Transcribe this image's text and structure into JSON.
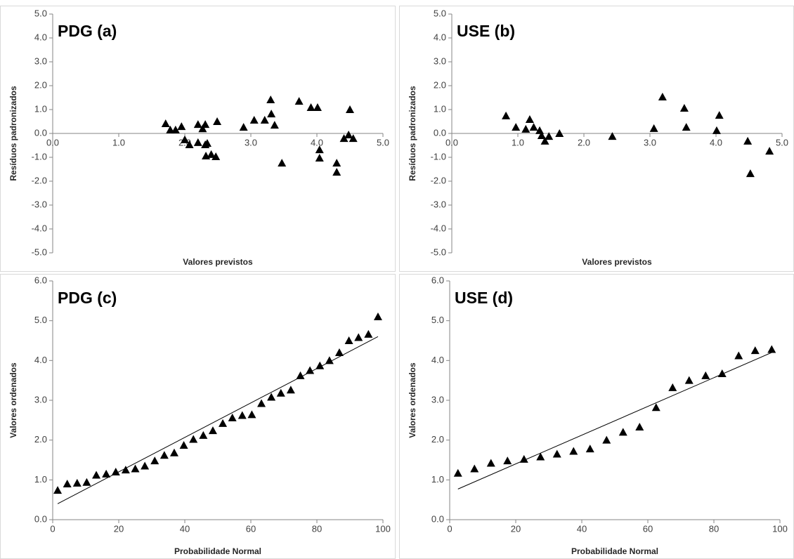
{
  "chart_data": [
    {
      "type": "scatter",
      "annotation": "PDG (a)",
      "xlabel": "Valores previstos",
      "ylabel": "Resíduos padronizados",
      "color": "#000000",
      "xaxis_position": "zero",
      "x": [
        1.71,
        1.78,
        1.86,
        1.95,
        2.0,
        2.07,
        2.2,
        2.2,
        2.27,
        2.31,
        2.31,
        2.34,
        2.32,
        2.4,
        2.47,
        2.49,
        2.89,
        3.05,
        3.21,
        3.3,
        3.31,
        3.36,
        3.47,
        3.73,
        3.91,
        4.01,
        4.04,
        4.04,
        4.3,
        4.3,
        4.41,
        4.48,
        4.5,
        4.55
      ],
      "values": [
        0.41,
        0.15,
        0.15,
        0.29,
        -0.26,
        -0.47,
        -0.38,
        0.38,
        0.2,
        0.38,
        -0.47,
        -0.41,
        -0.94,
        -0.88,
        -0.97,
        0.5,
        0.26,
        0.56,
        0.56,
        1.41,
        0.82,
        0.35,
        -1.24,
        1.35,
        1.09,
        1.09,
        -0.68,
        -1.03,
        -1.24,
        -1.62,
        -0.21,
        -0.06,
        1.0,
        -0.21
      ],
      "xlim": [
        0,
        5
      ],
      "ylim": [
        -5,
        5
      ],
      "xticks": [
        {
          "value": 0,
          "label": "0.0"
        },
        {
          "value": 1,
          "label": "1.0"
        },
        {
          "value": 2,
          "label": "2.0"
        },
        {
          "value": 3,
          "label": "3.0"
        },
        {
          "value": 4,
          "label": "4.0"
        },
        {
          "value": 5,
          "label": "5.0"
        }
      ],
      "yticks": [
        {
          "value": -5,
          "label": "-5.0"
        },
        {
          "value": -4,
          "label": "-4.0"
        },
        {
          "value": -3,
          "label": "-3.0"
        },
        {
          "value": -2,
          "label": "-2.0"
        },
        {
          "value": -1,
          "label": "-1.0"
        },
        {
          "value": 0,
          "label": "0.0"
        },
        {
          "value": 1,
          "label": "1.0"
        },
        {
          "value": 2,
          "label": "2.0"
        },
        {
          "value": 3,
          "label": "3.0"
        },
        {
          "value": 4,
          "label": "4.0"
        },
        {
          "value": 5,
          "label": "5.0"
        }
      ]
    },
    {
      "type": "scatter",
      "annotation": "USE (b)",
      "xlabel": "Valores previstos",
      "ylabel": "Resíduos padronizados",
      "color": "#000000",
      "xaxis_position": "zero",
      "x": [
        0.82,
        0.97,
        1.12,
        1.18,
        1.24,
        1.33,
        1.36,
        1.41,
        1.47,
        1.63,
        2.43,
        3.06,
        3.19,
        3.52,
        3.55,
        4.01,
        4.05,
        4.48,
        4.52,
        4.81
      ],
      "values": [
        0.74,
        0.26,
        0.18,
        0.59,
        0.26,
        0.12,
        -0.09,
        -0.32,
        -0.12,
        0.0,
        -0.12,
        0.21,
        1.53,
        1.06,
        0.26,
        0.12,
        0.76,
        -0.32,
        -1.68,
        -0.74
      ],
      "xlim": [
        0,
        5
      ],
      "ylim": [
        -5,
        5
      ],
      "xticks": [
        {
          "value": 0,
          "label": "0.0"
        },
        {
          "value": 1,
          "label": "1.0"
        },
        {
          "value": 2,
          "label": "2.0"
        },
        {
          "value": 3,
          "label": "3.0"
        },
        {
          "value": 4,
          "label": "4.0"
        },
        {
          "value": 5,
          "label": "5.0"
        }
      ],
      "yticks": [
        {
          "value": -5,
          "label": "-5.0"
        },
        {
          "value": -4,
          "label": "-4.0"
        },
        {
          "value": -3,
          "label": "-3.0"
        },
        {
          "value": -2,
          "label": "-2.0"
        },
        {
          "value": -1,
          "label": "-1.0"
        },
        {
          "value": 0,
          "label": "0.0"
        },
        {
          "value": 1,
          "label": "1.0"
        },
        {
          "value": 2,
          "label": "2.0"
        },
        {
          "value": 3,
          "label": "3.0"
        },
        {
          "value": 4,
          "label": "4.0"
        },
        {
          "value": 5,
          "label": "5.0"
        }
      ]
    },
    {
      "type": "scatter",
      "annotation": "PDG (c)",
      "xlabel": "Probabilidade Normal",
      "ylabel": "Valores ordenados",
      "color": "#000000",
      "xaxis_position": "bottom",
      "x": [
        1.5,
        4.4,
        7.4,
        10.3,
        13.2,
        16.2,
        19.1,
        22.1,
        25,
        27.9,
        30.9,
        33.8,
        36.8,
        39.7,
        42.6,
        45.6,
        48.5,
        51.5,
        54.4,
        57.4,
        60.3,
        63.2,
        66.2,
        69.1,
        72.1,
        75,
        77.9,
        80.9,
        83.8,
        86.8,
        89.7,
        92.6,
        95.6,
        98.5
      ],
      "values": [
        0.74,
        0.9,
        0.92,
        0.94,
        1.12,
        1.15,
        1.2,
        1.25,
        1.28,
        1.35,
        1.48,
        1.62,
        1.68,
        1.87,
        2.02,
        2.12,
        2.24,
        2.42,
        2.56,
        2.62,
        2.64,
        2.92,
        3.08,
        3.18,
        3.26,
        3.62,
        3.75,
        3.87,
        4.0,
        4.2,
        4.5,
        4.58,
        4.66,
        5.1
      ],
      "trendline": {
        "x": [
          1.5,
          98.5
        ],
        "y": [
          0.4,
          4.6
        ]
      },
      "xlim": [
        0,
        100
      ],
      "ylim": [
        0,
        6
      ],
      "xticks": [
        0,
        20,
        40,
        60,
        80,
        100
      ],
      "yticks": [
        {
          "value": 0,
          "label": "0.0"
        },
        {
          "value": 1,
          "label": "1.0"
        },
        {
          "value": 2,
          "label": "2.0"
        },
        {
          "value": 3,
          "label": "3.0"
        },
        {
          "value": 4,
          "label": "4.0"
        },
        {
          "value": 5,
          "label": "5.0"
        },
        {
          "value": 6,
          "label": "6.0"
        }
      ]
    },
    {
      "type": "scatter",
      "annotation": "USE (d)",
      "xlabel": "Probabilidade Normal",
      "ylabel": "Valores ordenados",
      "color": "#000000",
      "xaxis_position": "bottom",
      "x": [
        2.5,
        7.5,
        12.5,
        17.5,
        22.5,
        27.5,
        32.5,
        37.5,
        42.5,
        47.5,
        52.5,
        57.5,
        62.5,
        67.5,
        72.5,
        77.5,
        82.5,
        87.5,
        92.5,
        97.5
      ],
      "values": [
        1.17,
        1.28,
        1.42,
        1.48,
        1.52,
        1.58,
        1.65,
        1.72,
        1.78,
        2.0,
        2.2,
        2.33,
        2.82,
        3.32,
        3.5,
        3.62,
        3.67,
        4.12,
        4.25,
        4.28
      ],
      "trendline": {
        "x": [
          2.5,
          97.5
        ],
        "y": [
          0.77,
          4.2
        ]
      },
      "xlim": [
        0,
        100
      ],
      "ylim": [
        0,
        6
      ],
      "xticks": [
        0,
        20,
        40,
        60,
        80,
        100
      ],
      "yticks": [
        {
          "value": 0,
          "label": "0.0"
        },
        {
          "value": 1,
          "label": "1.0"
        },
        {
          "value": 2,
          "label": "2.0"
        },
        {
          "value": 3,
          "label": "3.0"
        },
        {
          "value": 4,
          "label": "4.0"
        },
        {
          "value": 5,
          "label": "5.0"
        },
        {
          "value": 6,
          "label": "6.0"
        }
      ]
    }
  ]
}
